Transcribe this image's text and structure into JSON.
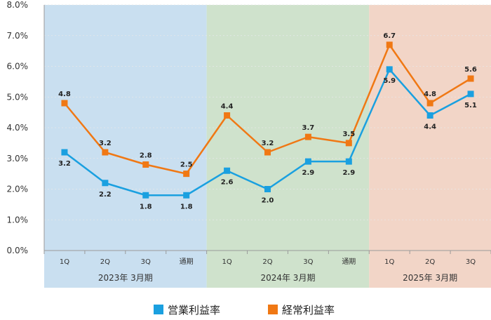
{
  "chart_data": {
    "type": "line",
    "categories": [
      "1Q",
      "2Q",
      "3Q",
      "通期",
      "1Q",
      "2Q",
      "3Q",
      "通期",
      "1Q",
      "2Q",
      "3Q"
    ],
    "groups": [
      {
        "label": "2023年 3月期",
        "start": 0,
        "end": 3,
        "color": "#c9dff0"
      },
      {
        "label": "2024年 3月期",
        "start": 4,
        "end": 7,
        "color": "#cfe2cc"
      },
      {
        "label": "2025年 3月期",
        "start": 8,
        "end": 10,
        "color": "#f2d5c7"
      }
    ],
    "series": [
      {
        "name": "営業利益率",
        "color": "#1aa0e0",
        "values": [
          3.2,
          2.2,
          1.8,
          1.8,
          2.6,
          2.0,
          2.9,
          2.9,
          5.9,
          4.4,
          5.1
        ],
        "label_pos": [
          "below",
          "below",
          "below",
          "below",
          "below",
          "below",
          "below",
          "below",
          "below",
          "below",
          "below"
        ]
      },
      {
        "name": "経常利益率",
        "color": "#f07814",
        "values": [
          4.8,
          3.2,
          2.8,
          2.5,
          4.4,
          3.2,
          3.7,
          3.5,
          6.7,
          4.8,
          5.6
        ],
        "label_pos": [
          "above",
          "above",
          "above",
          "above",
          "above",
          "above",
          "above",
          "above",
          "above",
          "above",
          "above"
        ]
      }
    ],
    "y_ticks": [
      "0.0%",
      "1.0%",
      "2.0%",
      "3.0%",
      "4.0%",
      "5.0%",
      "6.0%",
      "7.0%",
      "8.0%"
    ],
    "ylim": [
      0,
      8
    ],
    "title": "",
    "xlabel": "",
    "ylabel": "",
    "grid": true,
    "legend_position": "bottom"
  }
}
